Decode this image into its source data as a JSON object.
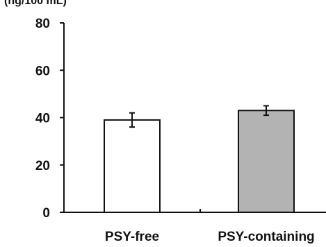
{
  "chart_data": {
    "type": "bar",
    "title": "",
    "ylabel_fragment": "(ng/100 mL)",
    "xlabel": "",
    "ylabel": "",
    "ylim": [
      0,
      80
    ],
    "yticks": [
      0,
      20,
      40,
      60,
      80
    ],
    "yticks_labels": [
      "0",
      "20",
      "40",
      "60",
      "80"
    ],
    "categories": [
      "PSY-free",
      "PSY-containing"
    ],
    "values": [
      39,
      43
    ],
    "error": [
      3,
      2
    ],
    "bar_colors": [
      "#ffffff",
      "#b3b3b3"
    ],
    "grid": false,
    "legend": "none"
  }
}
